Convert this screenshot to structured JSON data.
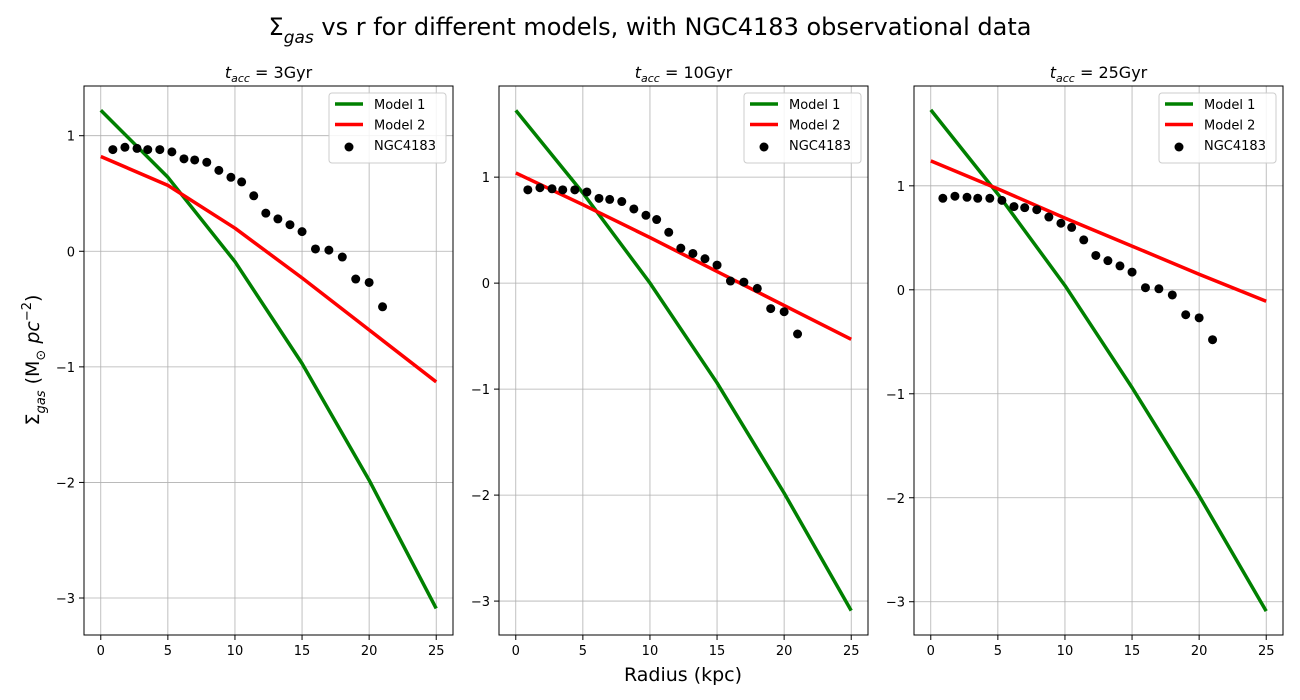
{
  "figure": {
    "suptitle_main": "Σ",
    "suptitle_sub": "gas",
    "suptitle_rest": " vs r for different models, with NGC4183 observational data",
    "xlabel": "Radius (kpc)",
    "ylabel_main": "Σ",
    "ylabel_sub": "gas",
    "ylabel_unit_open": " (M",
    "ylabel_unit_sun": "⊙",
    "ylabel_unit_pc": " pc",
    "ylabel_unit_exp": "−2",
    "ylabel_unit_close": ")"
  },
  "colors": {
    "model1": "#008000",
    "model2": "#ff0000",
    "data": "#000000",
    "grid": "#b0b0b0"
  },
  "chart_data": [
    {
      "type": "line",
      "title_main": "t",
      "title_sub": "acc",
      "title_rest": " = 3Gyr",
      "xlim": [
        -1.25,
        26.25
      ],
      "ylim": [
        -3.32,
        1.43
      ],
      "xticks": [
        0,
        5,
        10,
        15,
        20,
        25
      ],
      "yticks": [
        -3,
        -2,
        -1,
        0,
        1
      ],
      "ytick_labels": [
        "−3",
        "−2",
        "−1",
        "0",
        "1"
      ],
      "grid": true,
      "legend": "top-right",
      "series": [
        {
          "name": "Model 1",
          "kind": "line",
          "x": [
            0,
            5,
            10,
            15,
            20,
            25
          ],
          "y": [
            1.22,
            0.64,
            -0.09,
            -0.97,
            -1.98,
            -3.09
          ]
        },
        {
          "name": "Model 2",
          "kind": "line",
          "x": [
            0,
            5,
            10,
            15,
            20,
            25
          ],
          "y": [
            0.82,
            0.57,
            0.2,
            -0.23,
            -0.68,
            -1.13
          ]
        },
        {
          "name": "NGC4183",
          "kind": "scatter",
          "x": [
            0.9,
            1.8,
            2.7,
            3.5,
            4.4,
            5.3,
            6.2,
            7.0,
            7.9,
            8.8,
            9.7,
            10.5,
            11.4,
            12.3,
            13.2,
            14.1,
            15.0,
            16.0,
            17.0,
            18.0,
            19.0,
            20.0,
            21.0
          ],
          "y": [
            0.88,
            0.9,
            0.89,
            0.88,
            0.88,
            0.86,
            0.8,
            0.79,
            0.77,
            0.7,
            0.64,
            0.6,
            0.48,
            0.33,
            0.28,
            0.23,
            0.17,
            0.02,
            0.01,
            -0.05,
            -0.24,
            -0.27,
            -0.48
          ]
        }
      ]
    },
    {
      "type": "line",
      "title_main": "t",
      "title_sub": "acc",
      "title_rest": " = 10Gyr",
      "xlim": [
        -1.25,
        26.25
      ],
      "ylim": [
        -3.32,
        1.86
      ],
      "xticks": [
        0,
        5,
        10,
        15,
        20,
        25
      ],
      "yticks": [
        -3,
        -2,
        -1,
        0,
        1
      ],
      "ytick_labels": [
        "−3",
        "−2",
        "−1",
        "0",
        "1"
      ],
      "grid": true,
      "legend": "top-right",
      "series": [
        {
          "name": "Model 1",
          "kind": "line",
          "x": [
            0,
            5,
            10,
            15,
            20,
            25
          ],
          "y": [
            1.63,
            0.85,
            0.0,
            -0.94,
            -1.98,
            -3.09
          ]
        },
        {
          "name": "Model 2",
          "kind": "line",
          "x": [
            0,
            5,
            10,
            15,
            20,
            25
          ],
          "y": [
            1.04,
            0.74,
            0.43,
            0.11,
            -0.21,
            -0.53
          ]
        },
        {
          "name": "NGC4183",
          "kind": "scatter",
          "x": [
            0.9,
            1.8,
            2.7,
            3.5,
            4.4,
            5.3,
            6.2,
            7.0,
            7.9,
            8.8,
            9.7,
            10.5,
            11.4,
            12.3,
            13.2,
            14.1,
            15.0,
            16.0,
            17.0,
            18.0,
            19.0,
            20.0,
            21.0
          ],
          "y": [
            0.88,
            0.9,
            0.89,
            0.88,
            0.88,
            0.86,
            0.8,
            0.79,
            0.77,
            0.7,
            0.64,
            0.6,
            0.48,
            0.33,
            0.28,
            0.23,
            0.17,
            0.02,
            0.01,
            -0.05,
            -0.24,
            -0.27,
            -0.48
          ]
        }
      ]
    },
    {
      "type": "line",
      "title_main": "t",
      "title_sub": "acc",
      "title_rest": " = 25Gyr",
      "xlim": [
        -1.25,
        26.25
      ],
      "ylim": [
        -3.32,
        1.96
      ],
      "xticks": [
        0,
        5,
        10,
        15,
        20,
        25
      ],
      "yticks": [
        -3,
        -2,
        -1,
        0,
        1
      ],
      "ytick_labels": [
        "−3",
        "−2",
        "−1",
        "0",
        "1"
      ],
      "grid": true,
      "legend": "top-right",
      "series": [
        {
          "name": "Model 1",
          "kind": "line",
          "x": [
            0,
            5,
            10,
            15,
            20,
            25
          ],
          "y": [
            1.73,
            0.92,
            0.04,
            -0.94,
            -1.98,
            -3.09
          ]
        },
        {
          "name": "Model 2",
          "kind": "line",
          "x": [
            0,
            5,
            10,
            15,
            20,
            25
          ],
          "y": [
            1.24,
            0.97,
            0.69,
            0.42,
            0.15,
            -0.11
          ]
        },
        {
          "name": "NGC4183",
          "kind": "scatter",
          "x": [
            0.9,
            1.8,
            2.7,
            3.5,
            4.4,
            5.3,
            6.2,
            7.0,
            7.9,
            8.8,
            9.7,
            10.5,
            11.4,
            12.3,
            13.2,
            14.1,
            15.0,
            16.0,
            17.0,
            18.0,
            19.0,
            20.0,
            21.0
          ],
          "y": [
            0.88,
            0.9,
            0.89,
            0.88,
            0.88,
            0.86,
            0.8,
            0.79,
            0.77,
            0.7,
            0.64,
            0.6,
            0.48,
            0.33,
            0.28,
            0.23,
            0.17,
            0.02,
            0.01,
            -0.05,
            -0.24,
            -0.27,
            -0.48
          ]
        }
      ]
    }
  ]
}
